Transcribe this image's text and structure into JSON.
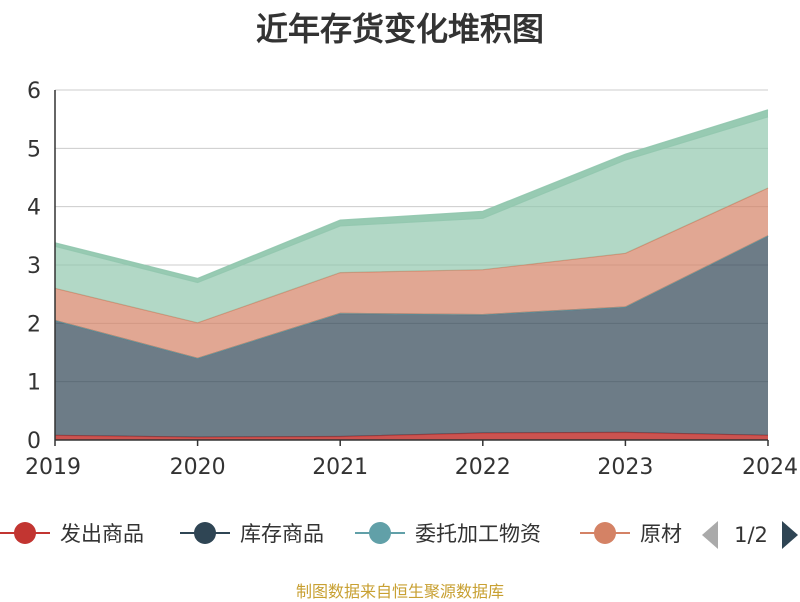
{
  "title": "近年存货变化堆积图",
  "source_note": "制图数据来自恒生聚源数据库",
  "legend_page": "1/2",
  "colors": {
    "fachu": "#c23531",
    "kucun": "#2f4554",
    "weituo": "#61a0a8",
    "yuancailiao": "#d48265",
    "top": "#91c7ae"
  },
  "chart_data": {
    "type": "area",
    "stacked": true,
    "title": "近年存货变化堆积图",
    "xlabel": "",
    "ylabel": "",
    "x": [
      "2019",
      "2020",
      "2021",
      "2022",
      "2023",
      "2024"
    ],
    "ylim": [
      0,
      6
    ],
    "yticks": [
      "0",
      "1",
      "2",
      "3",
      "4",
      "5",
      "6"
    ],
    "grid": true,
    "legend_position": "bottom",
    "series": [
      {
        "name": "发出商品",
        "values": [
          0.08,
          0.05,
          0.06,
          0.12,
          0.13,
          0.08
        ]
      },
      {
        "name": "库存商品",
        "values": [
          1.97,
          1.35,
          2.11,
          2.03,
          2.15,
          3.42
        ]
      },
      {
        "name": "委托加工物资",
        "values": [
          0.0,
          0.0,
          0.0,
          0.0,
          0.0,
          0.0
        ]
      },
      {
        "name": "原材料",
        "values": [
          0.55,
          0.61,
          0.7,
          0.77,
          0.92,
          0.82
        ]
      },
      {
        "name": "",
        "values": [
          0.72,
          0.69,
          0.8,
          0.88,
          1.6,
          1.22
        ]
      },
      {
        "name": "",
        "values": [
          0.06,
          0.07,
          0.1,
          0.12,
          0.1,
          0.12
        ]
      }
    ]
  }
}
